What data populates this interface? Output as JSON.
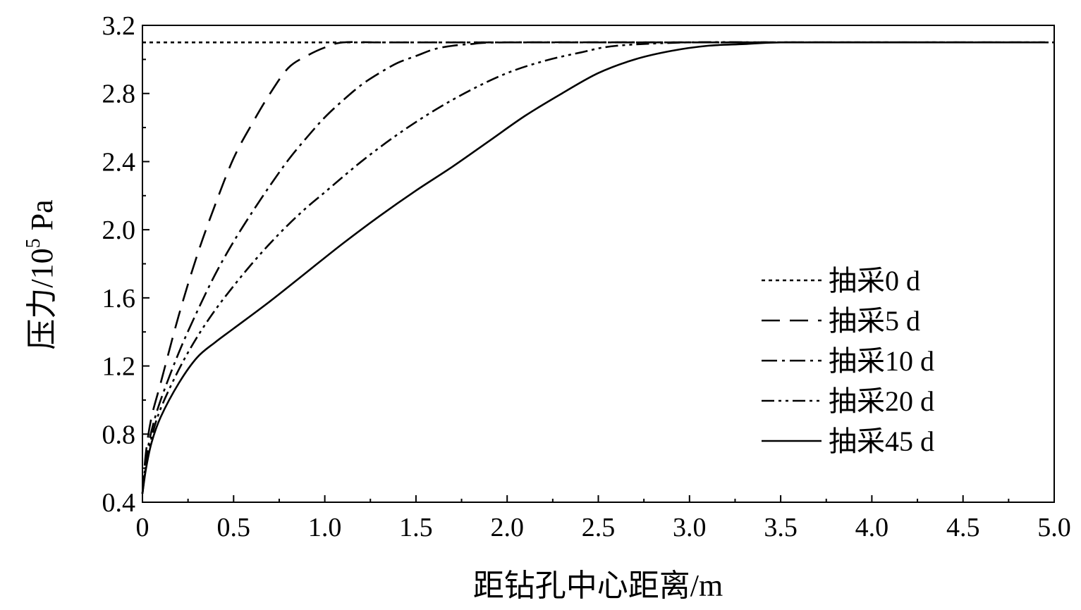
{
  "chart_data": {
    "type": "line",
    "title": "",
    "xlabel": "距钻孔中心距离/m",
    "ylabel_text": "压力/10",
    "ylabel_sup": "5",
    "ylabel_unit": " Pa",
    "xlim": [
      0,
      5.0
    ],
    "ylim": [
      0.4,
      3.2
    ],
    "xticks": [
      "0",
      "0.5",
      "1.0",
      "1.5",
      "2.0",
      "2.5",
      "3.0",
      "3.5",
      "4.0",
      "4.5",
      "5.0"
    ],
    "yticks": [
      "0.4",
      "0.8",
      "1.2",
      "1.6",
      "2.0",
      "2.4",
      "2.8",
      "3.2"
    ],
    "grid": false,
    "legend_position": "right-center",
    "series": [
      {
        "name": "抽采0 d",
        "style": "dotted",
        "x": [
          0,
          5.0
        ],
        "y": [
          3.1,
          3.1
        ]
      },
      {
        "name": "抽采5 d",
        "style": "dashed",
        "x": [
          0,
          0.02,
          0.05,
          0.1,
          0.2,
          0.3,
          0.4,
          0.5,
          0.6,
          0.7,
          0.8,
          0.9,
          1.0,
          1.1,
          1.3,
          1.5,
          2.0,
          3.0,
          4.0,
          4.95
        ],
        "y": [
          0.45,
          0.7,
          0.9,
          1.1,
          1.5,
          1.85,
          2.15,
          2.42,
          2.62,
          2.8,
          2.95,
          3.02,
          3.07,
          3.1,
          3.1,
          3.1,
          3.1,
          3.1,
          3.1,
          3.1
        ]
      },
      {
        "name": "抽采10 d",
        "style": "dash-dot",
        "x": [
          0,
          0.02,
          0.05,
          0.1,
          0.2,
          0.3,
          0.4,
          0.5,
          0.6,
          0.7,
          0.8,
          0.9,
          1.0,
          1.1,
          1.2,
          1.3,
          1.4,
          1.5,
          1.6,
          1.7,
          1.8,
          2.0,
          3.0,
          4.0,
          4.95
        ],
        "y": [
          0.45,
          0.65,
          0.82,
          1.0,
          1.28,
          1.52,
          1.74,
          1.93,
          2.1,
          2.26,
          2.41,
          2.54,
          2.66,
          2.76,
          2.85,
          2.92,
          2.98,
          3.02,
          3.06,
          3.08,
          3.09,
          3.1,
          3.1,
          3.1,
          3.1
        ]
      },
      {
        "name": "抽采20 d",
        "style": "dash-dot-dot",
        "x": [
          0,
          0.02,
          0.05,
          0.1,
          0.2,
          0.3,
          0.4,
          0.5,
          0.6,
          0.7,
          0.8,
          0.9,
          1.0,
          1.2,
          1.4,
          1.6,
          1.8,
          2.0,
          2.2,
          2.4,
          2.6,
          3.0,
          3.5,
          4.0,
          4.95
        ],
        "y": [
          0.45,
          0.62,
          0.78,
          0.95,
          1.18,
          1.37,
          1.53,
          1.67,
          1.8,
          1.92,
          2.03,
          2.13,
          2.22,
          2.4,
          2.56,
          2.7,
          2.82,
          2.92,
          2.99,
          3.04,
          3.08,
          3.1,
          3.1,
          3.1,
          3.1
        ]
      },
      {
        "name": "抽采45 d",
        "style": "solid",
        "x": [
          0,
          0.02,
          0.05,
          0.1,
          0.2,
          0.3,
          0.4,
          0.5,
          0.7,
          0.9,
          1.1,
          1.3,
          1.5,
          1.7,
          1.9,
          2.1,
          2.3,
          2.5,
          2.7,
          2.9,
          3.1,
          3.3,
          3.5,
          4.0,
          4.95
        ],
        "y": [
          0.45,
          0.6,
          0.75,
          0.9,
          1.1,
          1.25,
          1.34,
          1.42,
          1.58,
          1.75,
          1.92,
          2.08,
          2.23,
          2.37,
          2.52,
          2.67,
          2.8,
          2.92,
          3.0,
          3.05,
          3.08,
          3.09,
          3.1,
          3.1,
          3.1
        ]
      }
    ]
  }
}
